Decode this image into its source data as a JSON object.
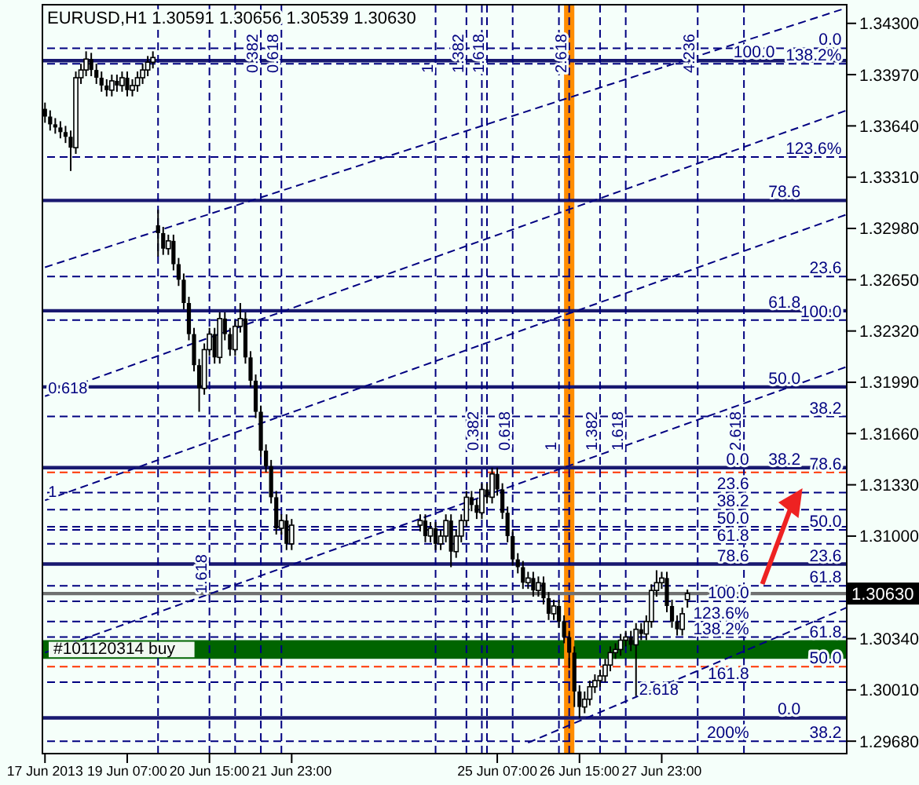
{
  "chart_data": {
    "type": "candlestick",
    "title": "EURUSD,H1  1.30591 1.30656 1.30539 1.30630",
    "color": "#000000",
    "x": [
      "2013-06-17T23:00",
      "2013-06-18T01:00",
      "2013-06-18T03:00",
      "2013-06-18T05:00",
      "2013-06-18T07:00",
      "2013-06-18T09:00",
      "2013-06-18T11:00",
      "2013-06-18T13:00",
      "2013-06-18T15:00",
      "2013-06-18T17:00",
      "2013-06-18T19:00",
      "2013-06-18T21:00",
      "2013-06-18T23:00",
      "2013-06-19T01:00",
      "2013-06-19T03:00",
      "2013-06-19T05:00",
      "2013-06-19T07:00",
      "2013-06-19T09:00",
      "2013-06-19T11:00",
      "2013-06-19T13:00",
      "2013-06-19T15:00",
      "2013-06-19T17:00",
      "2013-06-19T19:00",
      "2013-06-19T21:00",
      "2013-06-19T23:00",
      "2013-06-20T01:00",
      "2013-06-20T03:00",
      "2013-06-20T05:00",
      "2013-06-20T07:00",
      "2013-06-20T09:00",
      "2013-06-20T11:00",
      "2013-06-20T13:00",
      "2013-06-20T15:00",
      "2013-06-20T17:00",
      "2013-06-20T19:00",
      "2013-06-20T21:00",
      "2013-06-20T23:00",
      "2013-06-21T01:00",
      "2013-06-21T03:00",
      "2013-06-21T05:00",
      "2013-06-21T07:00",
      "2013-06-21T09:00",
      "2013-06-21T11:00",
      "2013-06-21T13:00",
      "2013-06-21T15:00",
      "2013-06-21T17:00",
      "2013-06-21T19:00",
      "2013-06-21T21:00",
      "2013-06-21T23:00",
      "2013-06-24T01:00",
      "2013-06-24T03:00",
      "2013-06-24T05:00",
      "2013-06-24T07:00",
      "2013-06-24T09:00",
      "2013-06-24T11:00",
      "2013-06-24T13:00",
      "2013-06-24T15:00",
      "2013-06-24T17:00",
      "2013-06-24T19:00",
      "2013-06-24T21:00",
      "2013-06-24T23:00",
      "2013-06-25T01:00",
      "2013-06-25T03:00",
      "2013-06-25T05:00",
      "2013-06-25T07:00",
      "2013-06-25T09:00",
      "2013-06-25T11:00",
      "2013-06-25T13:00",
      "2013-06-25T15:00",
      "2013-06-25T17:00",
      "2013-06-25T19:00",
      "2013-06-25T21:00",
      "2013-06-25T23:00",
      "2013-06-26T01:00",
      "2013-06-26T03:00",
      "2013-06-26T05:00",
      "2013-06-26T07:00",
      "2013-06-26T09:00",
      "2013-06-26T11:00",
      "2013-06-26T13:00",
      "2013-06-26T15:00",
      "2013-06-26T17:00",
      "2013-06-26T19:00",
      "2013-06-26T21:00",
      "2013-06-26T23:00",
      "2013-06-27T01:00",
      "2013-06-27T03:00",
      "2013-06-27T05:00",
      "2013-06-27T07:00",
      "2013-06-27T09:00",
      "2013-06-27T11:00",
      "2013-06-27T13:00",
      "2013-06-27T15:00",
      "2013-06-27T17:00",
      "2013-06-27T19:00",
      "2013-06-27T21:00",
      "2013-06-27T23:00",
      "2013-06-28T01:00",
      "2013-06-28T03:00",
      "2013-06-28T05:00",
      "2013-06-28T07:00",
      "2013-06-28T09:00"
    ],
    "ohlc": [
      [
        1.3375,
        1.3379,
        1.3366,
        1.337
      ],
      [
        1.337,
        1.3374,
        1.3361,
        1.3365
      ],
      [
        1.3365,
        1.3369,
        1.3359,
        1.3363
      ],
      [
        1.3363,
        1.3367,
        1.3356,
        1.336
      ],
      [
        1.336,
        1.3364,
        1.3353,
        1.3357
      ],
      [
        1.3357,
        1.3361,
        1.3335,
        1.335
      ],
      [
        1.335,
        1.3399,
        1.3346,
        1.3395
      ],
      [
        1.3395,
        1.3404,
        1.3391,
        1.34
      ],
      [
        1.34,
        1.3412,
        1.3396,
        1.3407
      ],
      [
        1.3407,
        1.3411,
        1.3396,
        1.34
      ],
      [
        1.34,
        1.3404,
        1.3391,
        1.3395
      ],
      [
        1.3395,
        1.3399,
        1.3386,
        1.339
      ],
      [
        1.339,
        1.3394,
        1.3383,
        1.3387
      ],
      [
        1.3387,
        1.3397,
        1.3383,
        1.3393
      ],
      [
        1.3393,
        1.3397,
        1.3386,
        1.339
      ],
      [
        1.339,
        1.3399,
        1.3386,
        1.3395
      ],
      [
        1.3395,
        1.3399,
        1.3383,
        1.3387
      ],
      [
        1.3387,
        1.3394,
        1.3383,
        1.339
      ],
      [
        1.339,
        1.3399,
        1.3386,
        1.3395
      ],
      [
        1.3395,
        1.3404,
        1.3391,
        1.34
      ],
      [
        1.34,
        1.3409,
        1.3396,
        1.3405
      ],
      [
        1.3405,
        1.3412,
        1.3401,
        1.3408
      ],
      [
        1.33,
        1.331,
        1.328,
        1.3295
      ],
      [
        1.3295,
        1.3299,
        1.3281,
        1.3285
      ],
      [
        1.3285,
        1.3294,
        1.3281,
        1.329
      ],
      [
        1.329,
        1.3294,
        1.3271,
        1.3275
      ],
      [
        1.3275,
        1.3279,
        1.3261,
        1.3265
      ],
      [
        1.3265,
        1.3269,
        1.3246,
        1.325
      ],
      [
        1.325,
        1.3254,
        1.3226,
        1.323
      ],
      [
        1.323,
        1.3234,
        1.3206,
        1.321
      ],
      [
        1.321,
        1.3214,
        1.318,
        1.3195
      ],
      [
        1.3195,
        1.3224,
        1.3191,
        1.322
      ],
      [
        1.322,
        1.3234,
        1.3216,
        1.323
      ],
      [
        1.323,
        1.3234,
        1.3211,
        1.3215
      ],
      [
        1.3215,
        1.3244,
        1.3211,
        1.324
      ],
      [
        1.324,
        1.3244,
        1.3226,
        1.323
      ],
      [
        1.323,
        1.3234,
        1.3216,
        1.322
      ],
      [
        1.322,
        1.3239,
        1.3216,
        1.3235
      ],
      [
        1.3235,
        1.325,
        1.3231,
        1.324
      ],
      [
        1.324,
        1.3244,
        1.3211,
        1.3215
      ],
      [
        1.3215,
        1.3219,
        1.3196,
        1.32
      ],
      [
        1.32,
        1.3204,
        1.3176,
        1.318
      ],
      [
        1.318,
        1.3184,
        1.3151,
        1.3155
      ],
      [
        1.3155,
        1.3159,
        1.3141,
        1.3145
      ],
      [
        1.3145,
        1.3149,
        1.3121,
        1.3125
      ],
      [
        1.3125,
        1.3129,
        1.3101,
        1.3105
      ],
      [
        1.3105,
        1.3114,
        1.3101,
        1.311
      ],
      [
        1.311,
        1.3114,
        1.3091,
        1.3095
      ],
      [
        1.3095,
        1.3111,
        1.3091,
        1.3107
      ],
      [
        1.3107,
        1.3114,
        1.3103,
        1.311
      ],
      [
        1.311,
        1.3114,
        1.3096,
        1.31
      ],
      [
        1.31,
        1.3109,
        1.3096,
        1.3105
      ],
      [
        1.3105,
        1.3109,
        1.3091,
        1.3095
      ],
      [
        1.3095,
        1.3104,
        1.3091,
        1.31
      ],
      [
        1.31,
        1.3114,
        1.3096,
        1.311
      ],
      [
        1.311,
        1.3114,
        1.308,
        1.309
      ],
      [
        1.309,
        1.3104,
        1.3086,
        1.31
      ],
      [
        1.31,
        1.3114,
        1.3096,
        1.311
      ],
      [
        1.311,
        1.3129,
        1.3106,
        1.3125
      ],
      [
        1.3125,
        1.3129,
        1.3116,
        1.312
      ],
      [
        1.312,
        1.3124,
        1.3111,
        1.3115
      ],
      [
        1.3115,
        1.3134,
        1.3111,
        1.313
      ],
      [
        1.313,
        1.3134,
        1.3121,
        1.3125
      ],
      [
        1.3125,
        1.3144,
        1.3121,
        1.314
      ],
      [
        1.314,
        1.3144,
        1.3126,
        1.313
      ],
      [
        1.313,
        1.3134,
        1.3111,
        1.3115
      ],
      [
        1.3115,
        1.3119,
        1.3096,
        1.31
      ],
      [
        1.31,
        1.3104,
        1.3081,
        1.3085
      ],
      [
        1.3085,
        1.3089,
        1.3076,
        1.308
      ],
      [
        1.308,
        1.3084,
        1.3066,
        1.307
      ],
      [
        1.307,
        1.3077,
        1.3066,
        1.3073
      ],
      [
        1.3073,
        1.3077,
        1.3061,
        1.3065
      ],
      [
        1.3065,
        1.3074,
        1.3061,
        1.307
      ],
      [
        1.307,
        1.3074,
        1.3056,
        1.306
      ],
      [
        1.306,
        1.3064,
        1.3046,
        1.305
      ],
      [
        1.305,
        1.3059,
        1.3046,
        1.3055
      ],
      [
        1.3055,
        1.3059,
        1.3041,
        1.3045
      ],
      [
        1.3045,
        1.3049,
        1.3031,
        1.3035
      ],
      [
        1.3035,
        1.3039,
        1.3015,
        1.3025
      ],
      [
        1.3025,
        1.3029,
        1.299,
        1.3
      ],
      [
        1.3,
        1.3004,
        1.2983,
        1.299
      ],
      [
        1.299,
        1.3,
        1.2986,
        1.2995
      ],
      [
        1.2995,
        1.3007,
        1.2991,
        1.3003
      ],
      [
        1.3003,
        1.3011,
        1.2999,
        1.3007
      ],
      [
        1.3007,
        1.3014,
        1.3003,
        1.301
      ],
      [
        1.301,
        1.3021,
        1.3006,
        1.3017
      ],
      [
        1.3017,
        1.3029,
        1.3013,
        1.3025
      ],
      [
        1.3025,
        1.3031,
        1.3021,
        1.3027
      ],
      [
        1.3027,
        1.3037,
        1.3023,
        1.3033
      ],
      [
        1.3033,
        1.3039,
        1.3029,
        1.3035
      ],
      [
        1.3035,
        1.3039,
        1.3026,
        1.303
      ],
      [
        1.303,
        1.3044,
        1.2997,
        1.304
      ],
      [
        1.304,
        1.3044,
        1.3033,
        1.3037
      ],
      [
        1.3037,
        1.3049,
        1.3033,
        1.3045
      ],
      [
        1.3045,
        1.3069,
        1.3041,
        1.3065
      ],
      [
        1.3065,
        1.3078,
        1.3061,
        1.307
      ],
      [
        1.307,
        1.3077,
        1.3066,
        1.3073
      ],
      [
        1.3073,
        1.3077,
        1.3051,
        1.3055
      ],
      [
        1.3055,
        1.3059,
        1.3041,
        1.3045
      ],
      [
        1.3045,
        1.3049,
        1.3036,
        1.304
      ],
      [
        1.304,
        1.3054,
        1.3036,
        1.305
      ],
      [
        1.30591,
        1.30656,
        1.30539,
        1.3063
      ]
    ],
    "series": [
      {
        "type": "line",
        "x": [
          "2013-06-17T23:00",
          "2013-06-30T23:00"
        ],
        "values": [
          1.3273,
          1.344
        ],
        "color": "#000080",
        "line_style": "dashed"
      },
      {
        "type": "line",
        "x": [
          "2013-06-17T23:00",
          "2013-06-30T23:00"
        ],
        "values": [
          1.319,
          1.3374
        ],
        "color": "#000080",
        "line_style": "dashed"
      },
      {
        "type": "line",
        "x": [
          "2013-06-17T23:00",
          "2013-06-30T23:00"
        ],
        "values": [
          1.3123,
          1.3307
        ],
        "color": "#000080",
        "line_style": "dashed"
      },
      {
        "type": "line",
        "x": [
          "2013-06-17T23:00",
          "2013-06-30T23:00"
        ],
        "values": [
          1.3025,
          1.3209
        ],
        "color": "#000080",
        "line_style": "dashed"
      },
      {
        "type": "line",
        "x": [
          "2013-06-25T19:00",
          "2013-06-30T23:00"
        ],
        "values": [
          1.2967,
          1.3054
        ],
        "color": "#000080",
        "line_style": "dashed"
      }
    ],
    "xlim": [
      "2013-06-17T22:00",
      "2013-06-30T23:00"
    ],
    "xticks": [
      {
        "value": "2013-06-17T23:00",
        "label": "17 Jun 2013"
      },
      {
        "value": "2013-06-19T07:00",
        "label": "19 Jun 07:00"
      },
      {
        "value": "2013-06-20T15:00",
        "label": "20 Jun 15:00"
      },
      {
        "value": "2013-06-21T23:00",
        "label": "21 Jun 23:00"
      },
      {
        "value": "2013-06-25T07:00",
        "label": "25 Jun 07:00"
      },
      {
        "value": "2013-06-26T15:00",
        "label": "26 Jun 15:00"
      },
      {
        "value": "2013-06-27T23:00",
        "label": "27 Jun 23:00"
      }
    ],
    "ylim": [
      1.296,
      1.3442
    ],
    "yticks": [
      {
        "value": 1.343,
        "label": "1.34300"
      },
      {
        "value": 1.3397,
        "label": "1.33970"
      },
      {
        "value": 1.3364,
        "label": "1.33640"
      },
      {
        "value": 1.3331,
        "label": "1.33310"
      },
      {
        "value": 1.3298,
        "label": "1.32980"
      },
      {
        "value": 1.3265,
        "label": "1.32650"
      },
      {
        "value": 1.3232,
        "label": "1.32320"
      },
      {
        "value": 1.3199,
        "label": "1.31990"
      },
      {
        "value": 1.3166,
        "label": "1.31660"
      },
      {
        "value": 1.3133,
        "label": "1.31330"
      },
      {
        "value": 1.31,
        "label": "1.31000"
      },
      {
        "value": 1.3067,
        "label": null
      },
      {
        "value": 1.3034,
        "label": "1.30340"
      },
      {
        "value": 1.3001,
        "label": "1.30010"
      },
      {
        "value": 1.2968,
        "label": "1.29680"
      }
    ],
    "ref_lines": [
      {
        "axis": "y",
        "value": 1.3406,
        "color": "#191970",
        "line_style": "solid"
      },
      {
        "axis": "y",
        "value": 1.3316,
        "color": "#191970",
        "line_style": "solid"
      },
      {
        "axis": "y",
        "value": 1.3245,
        "color": "#191970",
        "line_style": "solid"
      },
      {
        "axis": "y",
        "value": 1.3196,
        "color": "#191970",
        "line_style": "solid"
      },
      {
        "axis": "y",
        "value": 1.3144,
        "color": "#191970",
        "line_style": "solid"
      },
      {
        "axis": "y",
        "value": 1.3082,
        "color": "#191970",
        "line_style": "solid"
      },
      {
        "axis": "y",
        "value": 1.2983,
        "color": "#191970",
        "line_style": "solid"
      },
      {
        "axis": "y",
        "value": 1.3414,
        "color": "#000080",
        "line_style": "dashed"
      },
      {
        "axis": "y",
        "value": 1.3404,
        "color": "#000080",
        "line_style": "dashed"
      },
      {
        "axis": "y",
        "value": 1.3344,
        "color": "#000080",
        "line_style": "dashed"
      },
      {
        "axis": "y",
        "value": 1.3267,
        "color": "#000080",
        "line_style": "dashed"
      },
      {
        "axis": "y",
        "value": 1.3239,
        "color": "#000080",
        "line_style": "dashed"
      },
      {
        "axis": "y",
        "value": 1.3177,
        "color": "#000080",
        "line_style": "dashed"
      },
      {
        "axis": "y",
        "value": 1.3104,
        "color": "#000080",
        "line_style": "dashed"
      },
      {
        "axis": "y",
        "value": 1.3068,
        "color": "#000080",
        "line_style": "dashed"
      },
      {
        "axis": "y",
        "value": 1.2968,
        "color": "#000080",
        "line_style": "dashed"
      },
      {
        "axis": "y",
        "value": 1.3128,
        "color": "#000080",
        "line_style": "dashed"
      },
      {
        "axis": "y",
        "value": 1.3117,
        "color": "#000080",
        "line_style": "dashed"
      },
      {
        "axis": "y",
        "value": 1.3106,
        "color": "#000080",
        "line_style": "dashed"
      },
      {
        "axis": "y",
        "value": 1.3095,
        "color": "#000080",
        "line_style": "dashed"
      },
      {
        "axis": "y",
        "value": 1.3058,
        "color": "#000080",
        "line_style": "dashed"
      },
      {
        "axis": "y",
        "value": 1.3045,
        "color": "#000080",
        "line_style": "dashed"
      },
      {
        "axis": "y",
        "value": 1.3035,
        "color": "#000080",
        "line_style": "dashed"
      },
      {
        "axis": "y",
        "value": 1.3006,
        "color": "#000080",
        "line_style": "dashed"
      },
      {
        "axis": "y",
        "value": 1.3141,
        "color": "#ff3300",
        "line_style": "dashed"
      },
      {
        "axis": "y",
        "value": 1.3016,
        "color": "#ff3300",
        "line_style": "dashed"
      },
      {
        "axis": "y",
        "value": 1.3063,
        "label": "1.30630",
        "color": "#707070",
        "line_style": "solid"
      },
      {
        "axis": "x",
        "value": "2013-06-19T19:00",
        "color": "#000080",
        "line_style": "dashed"
      },
      {
        "axis": "x",
        "value": "2013-06-20T15:00",
        "color": "#000080",
        "line_style": "dashed"
      },
      {
        "axis": "x",
        "value": "2013-06-21T01:00",
        "color": "#000080",
        "line_style": "dashed"
      },
      {
        "axis": "x",
        "value": "2013-06-21T11:00",
        "color": "#000080",
        "line_style": "dashed"
      },
      {
        "axis": "x",
        "value": "2013-06-21T19:00",
        "color": "#000080",
        "line_style": "dashed"
      },
      {
        "axis": "x",
        "value": "2013-06-24T07:00",
        "color": "#000080",
        "line_style": "dashed"
      },
      {
        "axis": "x",
        "value": "2013-06-24T19:00",
        "color": "#000080",
        "line_style": "dashed"
      },
      {
        "axis": "x",
        "value": "2013-06-25T03:00",
        "color": "#000080",
        "line_style": "dashed"
      },
      {
        "axis": "x",
        "value": "2013-06-26T11:00",
        "color": "#000080",
        "line_style": "dashed"
      },
      {
        "axis": "x",
        "value": "2013-06-28T13:00",
        "color": "#000080",
        "line_style": "dashed"
      },
      {
        "axis": "x",
        "value": "2013-06-25T01:00",
        "color": "#000080",
        "line_style": "dashed"
      },
      {
        "axis": "x",
        "value": "2013-06-25T13:00",
        "color": "#000080",
        "line_style": "dashed"
      },
      {
        "axis": "x",
        "value": "2013-06-26T07:00",
        "color": "#000080",
        "line_style": "dashed"
      },
      {
        "axis": "x",
        "value": "2013-06-26T23:00",
        "color": "#000080",
        "line_style": "dashed"
      },
      {
        "axis": "x",
        "value": "2013-06-27T09:00",
        "color": "#000080",
        "line_style": "dashed"
      },
      {
        "axis": "x",
        "value": "2013-06-29T07:00",
        "color": "#000080",
        "line_style": "dashed"
      }
    ],
    "bands": [
      {
        "axis": "y",
        "from": 1.3021,
        "to": 1.3033,
        "label": "#101120314 buy",
        "color": "#006400"
      },
      {
        "axis": "x",
        "from": "2013-06-26T09:00",
        "to": "2013-06-26T13:00",
        "color": "#ff8c00"
      }
    ],
    "annotations": [
      {
        "text": "100.0",
        "x": "2013-06-29T19:00",
        "y": 1.3406
      },
      {
        "text": "78.6",
        "x": "2013-06-30T05:00",
        "y": 1.3316
      },
      {
        "text": "61.8",
        "x": "2013-06-30T05:00",
        "y": 1.3245
      },
      {
        "text": "50.0",
        "x": "2013-06-30T05:00",
        "y": 1.3196
      },
      {
        "text": "38.2",
        "x": "2013-06-30T05:00",
        "y": 1.3144
      },
      {
        "text": "23.6",
        "x": "2013-06-30T21:00",
        "y": 1.3082
      },
      {
        "text": "0.0",
        "x": "2013-06-30T05:00",
        "y": 1.2983
      },
      {
        "text": "0.0",
        "x": "2013-06-30T21:00",
        "y": 1.3414
      },
      {
        "text": "138.2%",
        "x": "2013-06-30T21:00",
        "y": 1.3404
      },
      {
        "text": "123.6%",
        "x": "2013-06-30T21:00",
        "y": 1.3344
      },
      {
        "text": "23.6",
        "x": "2013-06-30T21:00",
        "y": 1.3267
      },
      {
        "text": "100.0",
        "x": "2013-06-30T21:00",
        "y": 1.3239
      },
      {
        "text": "38.2",
        "x": "2013-06-30T21:00",
        "y": 1.3177
      },
      {
        "text": "78.6",
        "x": "2013-06-30T21:00",
        "y": 1.3141
      },
      {
        "text": "50.0",
        "x": "2013-06-30T21:00",
        "y": 1.3104
      },
      {
        "text": "61.8",
        "x": "2013-06-30T21:00",
        "y": 1.3068
      },
      {
        "text": "61.8",
        "x": "2013-06-30T21:00",
        "y": 1.3033
      },
      {
        "text": "50.0",
        "x": "2013-06-30T21:00",
        "y": 1.3016
      },
      {
        "text": "38.2",
        "x": "2013-06-30T21:00",
        "y": 1.2968
      },
      {
        "text": "0.0",
        "x": "2013-06-29T09:00",
        "y": 1.3144
      },
      {
        "text": "23.6",
        "x": "2013-06-29T09:00",
        "y": 1.3128
      },
      {
        "text": "38.2",
        "x": "2013-06-29T09:00",
        "y": 1.3117
      },
      {
        "text": "50.0",
        "x": "2013-06-29T09:00",
        "y": 1.3106
      },
      {
        "text": "61.8",
        "x": "2013-06-29T09:00",
        "y": 1.3095
      },
      {
        "text": "78.6",
        "x": "2013-06-29T09:00",
        "y": 1.3082
      },
      {
        "text": "100.0",
        "x": "2013-06-29T09:00",
        "y": 1.3058
      },
      {
        "text": "123.6%",
        "x": "2013-06-29T09:00",
        "y": 1.3045
      },
      {
        "text": "138.2%",
        "x": "2013-06-29T09:00",
        "y": 1.3035
      },
      {
        "text": "161.8",
        "x": "2013-06-29T09:00",
        "y": 1.3006
      },
      {
        "text": "200%",
        "x": "2013-06-29T09:00",
        "y": 1.2968
      },
      {
        "text": "0.382",
        "x": "2013-06-21T11:00",
        "y": 1.3398
      },
      {
        "text": "0.618",
        "x": "2013-06-21T19:00",
        "y": 1.3398
      },
      {
        "text": "1",
        "x": "2013-06-24T07:00",
        "y": 1.3398
      },
      {
        "text": "1.382",
        "x": "2013-06-24T19:00",
        "y": 1.3398
      },
      {
        "text": "1.618",
        "x": "2013-06-25T03:00",
        "y": 1.3398
      },
      {
        "text": "2.618",
        "x": "2013-06-26T11:00",
        "y": 1.3398
      },
      {
        "text": "4.236",
        "x": "2013-06-28T13:00",
        "y": 1.3398
      },
      {
        "text": "0.382",
        "x": "2013-06-25T01:00",
        "y": 1.3155
      },
      {
        "text": "0.618",
        "x": "2013-06-25T13:00",
        "y": 1.3155
      },
      {
        "text": "1",
        "x": "2013-06-26T07:00",
        "y": 1.3155
      },
      {
        "text": "1.382",
        "x": "2013-06-26T23:00",
        "y": 1.3155
      },
      {
        "text": "1.618",
        "x": "2013-06-27T09:00",
        "y": 1.3155
      },
      {
        "text": "2.618",
        "x": "2013-06-29T07:00",
        "y": 1.3155
      },
      {
        "text": "0.618",
        "x": "2013-06-17T23:00",
        "y": 1.319
      },
      {
        "text": "1",
        "x": "2013-06-17T23:00",
        "y": 1.3123
      },
      {
        "text": "1.618",
        "x": "2013-06-20T15:00",
        "y": 1.3063
      },
      {
        "text": "2.618",
        "x": "2013-06-27T13:00",
        "y": 1.2996
      }
    ]
  }
}
